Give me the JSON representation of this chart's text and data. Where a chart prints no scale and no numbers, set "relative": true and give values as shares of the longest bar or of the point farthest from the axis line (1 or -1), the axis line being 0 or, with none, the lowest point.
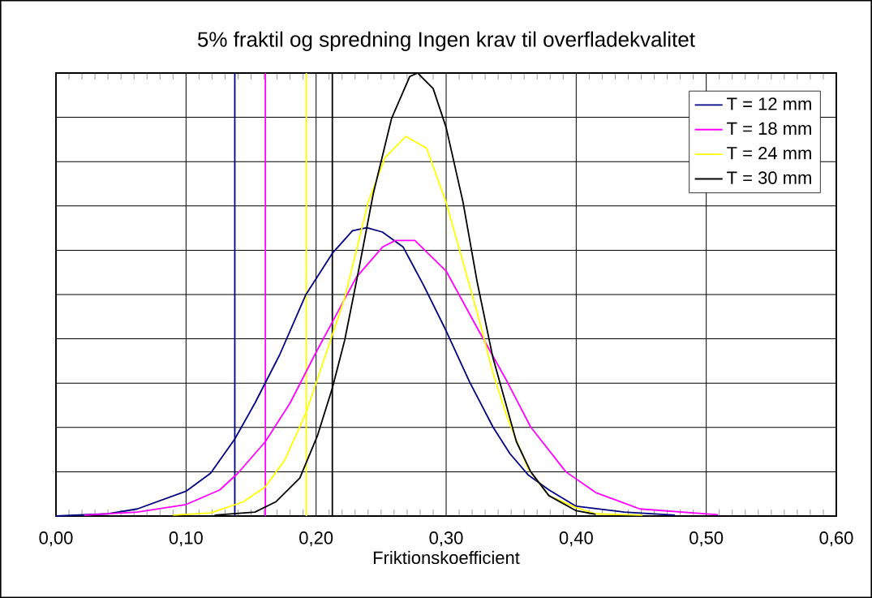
{
  "chart_data": {
    "type": "line",
    "title": "5% fraktil og spredning Ingen krav til overfladekvalitet",
    "xlabel": "Friktionskoefficient",
    "relative": true,
    "xlim": [
      0,
      0.6
    ],
    "xticks": [
      {
        "value": 0,
        "label": "0,00"
      },
      {
        "value": 0.1,
        "label": "0,10"
      },
      {
        "value": 0.2,
        "label": "0,20"
      },
      {
        "value": 0.3,
        "label": "0,30"
      },
      {
        "value": 0.4,
        "label": "0,40"
      },
      {
        "value": 0.5,
        "label": "0,50"
      },
      {
        "value": 0.6,
        "label": "0,60"
      }
    ],
    "grid": true,
    "legend": "top right",
    "marker": "none",
    "line_style": "solid",
    "series": [
      {
        "name": "T = 12 mm",
        "color": "#000080",
        "x": [
          0.0,
          0.04,
          0.0625,
          0.1,
          0.119,
          0.1375,
          0.153,
          0.172,
          0.192,
          0.2125,
          0.228,
          0.239,
          0.251,
          0.267,
          0.283,
          0.3,
          0.318,
          0.336,
          0.349,
          0.363,
          0.379,
          0.4,
          0.437,
          0.476
        ],
        "values": [
          0,
          0.005,
          0.016,
          0.056,
          0.097,
          0.174,
          0.255,
          0.364,
          0.499,
          0.593,
          0.644,
          0.651,
          0.641,
          0.607,
          0.519,
          0.418,
          0.303,
          0.201,
          0.141,
          0.093,
          0.059,
          0.022,
          0.009,
          0.002
        ]
      },
      {
        "name": "T = 18 mm",
        "color": "#ff00ff",
        "x": [
          0.0216,
          0.0625,
          0.1,
          0.126,
          0.14,
          0.161,
          0.18,
          0.199,
          0.2125,
          0.231,
          0.251,
          0.261,
          0.276,
          0.3,
          0.324,
          0.347,
          0.365,
          0.392,
          0.415,
          0.449,
          0.509
        ],
        "values": [
          0.002,
          0.009,
          0.026,
          0.059,
          0.097,
          0.168,
          0.255,
          0.364,
          0.438,
          0.539,
          0.607,
          0.622,
          0.622,
          0.553,
          0.424,
          0.303,
          0.201,
          0.1,
          0.053,
          0.016,
          0.003
        ]
      },
      {
        "name": "T = 24 mm",
        "color": "#ffff00",
        "x": [
          0.09,
          0.119,
          0.144,
          0.161,
          0.176,
          0.1925,
          0.208,
          0.222,
          0.24,
          0.253,
          0.269,
          0.285,
          0.3,
          0.324,
          0.336,
          0.347,
          0.363,
          0.379,
          0.4,
          0.415,
          0.451
        ],
        "values": [
          0.002,
          0.007,
          0.032,
          0.066,
          0.127,
          0.235,
          0.37,
          0.492,
          0.708,
          0.809,
          0.857,
          0.83,
          0.708,
          0.458,
          0.323,
          0.222,
          0.107,
          0.046,
          0.019,
          0.005,
          0.002
        ]
      },
      {
        "name": "T = 30 mm",
        "color": "#000000",
        "x": [
          0.122,
          0.153,
          0.169,
          0.1875,
          0.201,
          0.2125,
          0.222,
          0.233,
          0.244,
          0.258,
          0.272,
          0.278,
          0.29,
          0.3,
          0.313,
          0.324,
          0.336,
          0.347,
          0.354,
          0.365,
          0.379,
          0.4,
          0.415
        ],
        "values": [
          0.002,
          0.009,
          0.032,
          0.086,
          0.181,
          0.289,
          0.397,
          0.559,
          0.728,
          0.897,
          0.992,
          1.0,
          0.965,
          0.877,
          0.708,
          0.526,
          0.357,
          0.242,
          0.168,
          0.1,
          0.046,
          0.012,
          0.004
        ]
      }
    ],
    "ref_lines": [
      {
        "axis": "x",
        "value": 0.1375,
        "color": "#000080"
      },
      {
        "axis": "x",
        "value": 0.161,
        "color": "#ff00ff"
      },
      {
        "axis": "x",
        "value": 0.1925,
        "color": "#ffff00"
      },
      {
        "axis": "x",
        "value": 0.2125,
        "color": "#000000"
      }
    ]
  }
}
